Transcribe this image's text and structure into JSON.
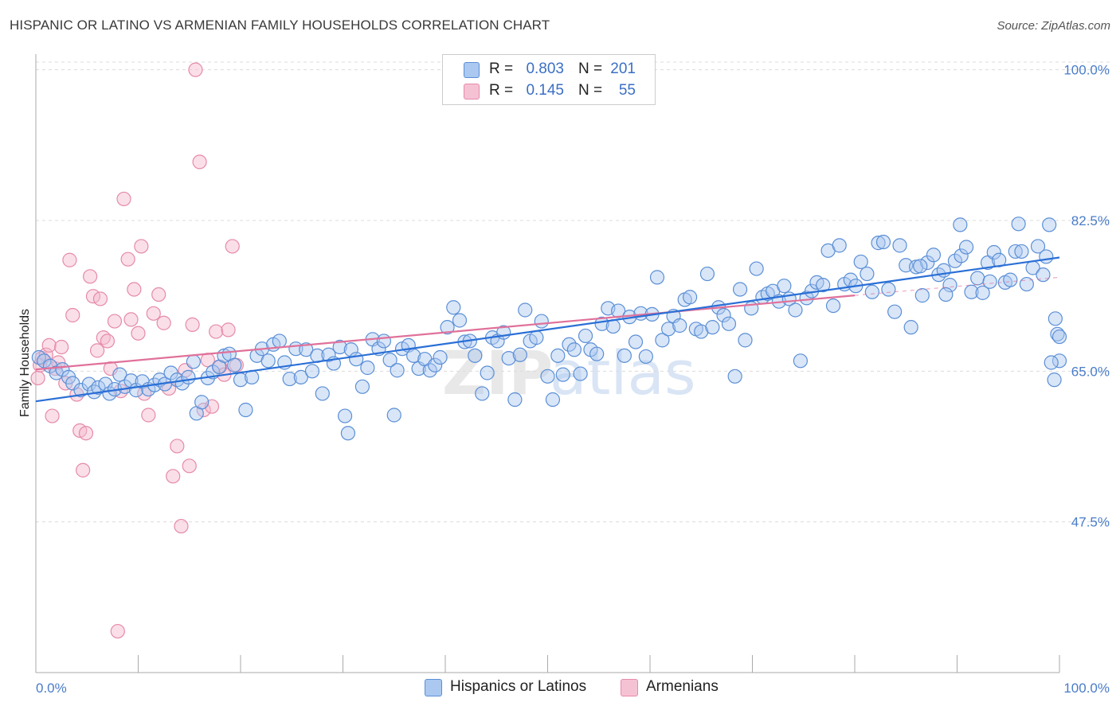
{
  "header": {
    "title": "HISPANIC OR LATINO VS ARMENIAN FAMILY HOUSEHOLDS CORRELATION CHART",
    "source": "Source: ZipAtlas.com"
  },
  "legend_top": {
    "rows": [
      {
        "r_label": "R =",
        "r_value": "0.803",
        "n_label": "N =",
        "n_value": "201"
      },
      {
        "r_label": "R =",
        "r_value": "0.145",
        "n_label": "N =",
        "n_value": "55"
      }
    ]
  },
  "legend_bottom": {
    "items": [
      {
        "label": "Hispanics or Latinos"
      },
      {
        "label": "Armenians"
      }
    ]
  },
  "watermark": {
    "part1": "ZIP",
    "part2": "atlas"
  },
  "colors": {
    "blue_fill": "#aac8f0",
    "blue_stroke": "#5b8fd6",
    "blue_line": "#2a6fd6",
    "pink_fill": "#f5b8cc",
    "pink_stroke": "#e68aa8",
    "pink_line": "#e0719a",
    "tick_text": "#4a7cc9",
    "grid": "#dcdcdc"
  },
  "chart_data": {
    "type": "scatter",
    "title": "HISPANIC OR LATINO VS ARMENIAN FAMILY HOUSEHOLDS CORRELATION CHART",
    "xlabel": "",
    "ylabel": "Family Households",
    "xlim": [
      0,
      100
    ],
    "ylim": [
      30,
      102
    ],
    "x_tick_labels": [
      "0.0%",
      "100.0%"
    ],
    "y_ticks": [
      47.5,
      65.0,
      82.5,
      100.0
    ],
    "y_tick_labels": [
      "47.5%",
      "65.0%",
      "82.5%",
      "100.0%"
    ],
    "grid": "horizontal dashed",
    "legend_position": "top-center",
    "series": [
      {
        "name": "Hispanics or Latinos",
        "color": "#5b8fd6",
        "trend": {
          "x0": 0,
          "y0": 61.5,
          "x1": 100,
          "y1": 78.2
        },
        "points": [
          [
            0.3,
            66.6
          ],
          [
            0.8,
            66.2
          ],
          [
            1.4,
            65.6
          ],
          [
            2.0,
            64.8
          ],
          [
            2.6,
            65.2
          ],
          [
            3.2,
            64.3
          ],
          [
            3.6,
            63.6
          ],
          [
            4.4,
            62.8
          ],
          [
            5.2,
            63.5
          ],
          [
            5.7,
            62.6
          ],
          [
            6.1,
            63.1
          ],
          [
            6.8,
            63.5
          ],
          [
            7.2,
            62.4
          ],
          [
            7.7,
            62.9
          ],
          [
            8.2,
            64.6
          ],
          [
            8.7,
            63.2
          ],
          [
            9.3,
            63.9
          ],
          [
            9.8,
            62.8
          ],
          [
            10.4,
            63.8
          ],
          [
            11.0,
            62.9
          ],
          [
            11.6,
            63.4
          ],
          [
            12.1,
            64.0
          ],
          [
            12.6,
            63.5
          ],
          [
            13.2,
            64.8
          ],
          [
            13.8,
            64.0
          ],
          [
            14.3,
            63.6
          ],
          [
            14.9,
            64.3
          ],
          [
            15.4,
            66.1
          ],
          [
            15.7,
            60.1
          ],
          [
            16.2,
            61.4
          ],
          [
            16.8,
            64.2
          ],
          [
            17.3,
            64.9
          ],
          [
            17.9,
            65.5
          ],
          [
            18.4,
            66.8
          ],
          [
            18.9,
            67.0
          ],
          [
            19.4,
            65.7
          ],
          [
            20.0,
            64.0
          ],
          [
            20.5,
            60.5
          ],
          [
            21.1,
            64.3
          ],
          [
            21.6,
            66.8
          ],
          [
            22.1,
            67.6
          ],
          [
            22.7,
            66.2
          ],
          [
            23.2,
            68.1
          ],
          [
            23.8,
            68.5
          ],
          [
            24.3,
            66.0
          ],
          [
            24.8,
            64.1
          ],
          [
            25.4,
            67.6
          ],
          [
            25.9,
            64.3
          ],
          [
            26.4,
            67.5
          ],
          [
            27.0,
            65.0
          ],
          [
            27.5,
            66.8
          ],
          [
            28.0,
            62.4
          ],
          [
            28.6,
            66.9
          ],
          [
            29.1,
            65.9
          ],
          [
            29.7,
            67.8
          ],
          [
            30.2,
            59.8
          ],
          [
            30.5,
            57.8
          ],
          [
            30.8,
            67.5
          ],
          [
            31.3,
            66.4
          ],
          [
            31.9,
            63.2
          ],
          [
            32.4,
            65.4
          ],
          [
            32.9,
            68.7
          ],
          [
            33.5,
            67.6
          ],
          [
            34.0,
            68.5
          ],
          [
            34.6,
            66.3
          ],
          [
            35.0,
            59.9
          ],
          [
            35.3,
            65.1
          ],
          [
            35.8,
            67.6
          ],
          [
            36.4,
            68.0
          ],
          [
            36.9,
            66.8
          ],
          [
            37.4,
            65.3
          ],
          [
            38.0,
            66.4
          ],
          [
            38.5,
            65.1
          ],
          [
            39.0,
            65.7
          ],
          [
            39.5,
            66.6
          ],
          [
            40.2,
            70.1
          ],
          [
            40.8,
            72.4
          ],
          [
            41.4,
            70.9
          ],
          [
            41.9,
            68.4
          ],
          [
            42.4,
            68.5
          ],
          [
            42.9,
            66.8
          ],
          [
            43.6,
            62.4
          ],
          [
            44.1,
            64.8
          ],
          [
            44.6,
            68.9
          ],
          [
            45.1,
            68.5
          ],
          [
            45.7,
            69.5
          ],
          [
            46.2,
            66.5
          ],
          [
            46.8,
            61.7
          ],
          [
            47.3,
            66.9
          ],
          [
            47.8,
            72.1
          ],
          [
            48.3,
            68.5
          ],
          [
            48.9,
            68.9
          ],
          [
            49.4,
            70.8
          ],
          [
            50.0,
            64.4
          ],
          [
            50.5,
            61.7
          ],
          [
            51.0,
            66.8
          ],
          [
            51.5,
            64.6
          ],
          [
            52.1,
            68.1
          ],
          [
            52.6,
            67.5
          ],
          [
            53.2,
            64.7
          ],
          [
            53.7,
            69.1
          ],
          [
            54.2,
            67.5
          ],
          [
            54.8,
            67.0
          ],
          [
            55.3,
            70.5
          ],
          [
            55.9,
            72.3
          ],
          [
            56.4,
            70.2
          ],
          [
            56.9,
            72.0
          ],
          [
            57.5,
            66.8
          ],
          [
            58.0,
            71.3
          ],
          [
            58.6,
            68.4
          ],
          [
            59.1,
            71.7
          ],
          [
            59.6,
            66.7
          ],
          [
            60.2,
            71.6
          ],
          [
            60.7,
            75.9
          ],
          [
            61.2,
            68.6
          ],
          [
            61.8,
            69.9
          ],
          [
            62.3,
            71.4
          ],
          [
            62.9,
            70.3
          ],
          [
            63.4,
            73.3
          ],
          [
            63.9,
            73.6
          ],
          [
            64.5,
            69.9
          ],
          [
            65.0,
            69.6
          ],
          [
            65.6,
            76.3
          ],
          [
            66.1,
            70.1
          ],
          [
            66.7,
            72.4
          ],
          [
            67.2,
            71.5
          ],
          [
            67.7,
            70.5
          ],
          [
            68.3,
            64.4
          ],
          [
            68.8,
            74.5
          ],
          [
            69.3,
            68.6
          ],
          [
            69.9,
            72.3
          ],
          [
            70.4,
            76.9
          ],
          [
            71.0,
            73.6
          ],
          [
            71.5,
            74.0
          ],
          [
            72.0,
            74.3
          ],
          [
            72.6,
            73.1
          ],
          [
            73.1,
            74.9
          ],
          [
            73.6,
            73.4
          ],
          [
            74.2,
            72.1
          ],
          [
            74.7,
            66.2
          ],
          [
            75.3,
            73.5
          ],
          [
            75.8,
            74.3
          ],
          [
            76.3,
            75.3
          ],
          [
            76.9,
            75.0
          ],
          [
            77.4,
            79.0
          ],
          [
            77.9,
            72.6
          ],
          [
            78.5,
            79.6
          ],
          [
            79.0,
            75.1
          ],
          [
            79.6,
            75.6
          ],
          [
            80.1,
            74.9
          ],
          [
            80.6,
            77.7
          ],
          [
            81.2,
            76.3
          ],
          [
            81.7,
            74.2
          ],
          [
            82.3,
            79.9
          ],
          [
            82.8,
            80.0
          ],
          [
            83.3,
            74.5
          ],
          [
            83.9,
            71.9
          ],
          [
            84.4,
            79.6
          ],
          [
            85.0,
            77.3
          ],
          [
            85.5,
            70.1
          ],
          [
            86.0,
            77.1
          ],
          [
            86.6,
            73.8
          ],
          [
            87.1,
            77.6
          ],
          [
            87.7,
            78.5
          ],
          [
            88.2,
            76.2
          ],
          [
            88.7,
            76.7
          ],
          [
            89.3,
            75.0
          ],
          [
            89.8,
            77.8
          ],
          [
            90.4,
            78.4
          ],
          [
            90.9,
            79.4
          ],
          [
            91.4,
            74.2
          ],
          [
            92.0,
            75.8
          ],
          [
            92.5,
            74.1
          ],
          [
            93.0,
            77.6
          ],
          [
            93.6,
            78.8
          ],
          [
            94.1,
            77.9
          ],
          [
            94.7,
            75.3
          ],
          [
            95.2,
            75.6
          ],
          [
            95.7,
            78.9
          ],
          [
            96.3,
            78.9
          ],
          [
            96.8,
            75.1
          ],
          [
            97.4,
            77.0
          ],
          [
            97.9,
            79.5
          ],
          [
            98.4,
            76.2
          ],
          [
            99.0,
            82.0
          ],
          [
            99.5,
            64.0
          ],
          [
            99.8,
            69.3
          ],
          [
            100.0,
            66.2
          ],
          [
            96.0,
            82.1
          ],
          [
            90.3,
            82.0
          ],
          [
            98.7,
            78.3
          ],
          [
            99.2,
            66.0
          ],
          [
            99.6,
            71.1
          ],
          [
            100.0,
            69.0
          ],
          [
            86.4,
            77.2
          ],
          [
            88.9,
            73.9
          ],
          [
            93.2,
            75.4
          ]
        ]
      },
      {
        "name": "Armenians",
        "color": "#e68aa8",
        "trend": {
          "x0": 0,
          "y0": 65.2,
          "x1": 80,
          "y1": 73.8
        },
        "trend_dash_to": {
          "x": 100,
          "y": 75.9
        },
        "points": [
          [
            0.2,
            64.2
          ],
          [
            0.4,
            65.7
          ],
          [
            0.6,
            66.5
          ],
          [
            1.0,
            66.9
          ],
          [
            1.3,
            68.0
          ],
          [
            1.6,
            59.8
          ],
          [
            1.9,
            65.3
          ],
          [
            2.2,
            66.0
          ],
          [
            2.5,
            67.8
          ],
          [
            2.9,
            63.6
          ],
          [
            3.3,
            77.9
          ],
          [
            3.6,
            71.5
          ],
          [
            4.0,
            62.3
          ],
          [
            4.3,
            58.1
          ],
          [
            4.6,
            53.5
          ],
          [
            4.9,
            57.8
          ],
          [
            5.3,
            76.0
          ],
          [
            5.6,
            73.7
          ],
          [
            6.0,
            67.4
          ],
          [
            6.3,
            73.4
          ],
          [
            6.6,
            68.9
          ],
          [
            7.0,
            68.5
          ],
          [
            7.3,
            65.3
          ],
          [
            7.7,
            70.8
          ],
          [
            8.0,
            34.8
          ],
          [
            8.3,
            62.7
          ],
          [
            8.6,
            85.0
          ],
          [
            9.0,
            78.0
          ],
          [
            9.3,
            71.0
          ],
          [
            9.6,
            74.5
          ],
          [
            10.0,
            69.4
          ],
          [
            10.3,
            79.5
          ],
          [
            10.6,
            62.4
          ],
          [
            11.0,
            59.9
          ],
          [
            11.5,
            71.7
          ],
          [
            12.0,
            73.9
          ],
          [
            12.5,
            70.6
          ],
          [
            13.0,
            63.0
          ],
          [
            13.4,
            52.8
          ],
          [
            13.8,
            56.3
          ],
          [
            14.2,
            47.0
          ],
          [
            14.6,
            65.1
          ],
          [
            15.0,
            54.0
          ],
          [
            15.3,
            70.4
          ],
          [
            15.6,
            100.0
          ],
          [
            16.0,
            89.3
          ],
          [
            16.4,
            60.5
          ],
          [
            16.8,
            66.3
          ],
          [
            17.2,
            60.9
          ],
          [
            17.6,
            69.6
          ],
          [
            18.0,
            65.5
          ],
          [
            18.4,
            64.6
          ],
          [
            18.8,
            69.8
          ],
          [
            19.2,
            79.5
          ],
          [
            19.6,
            65.7
          ]
        ]
      }
    ]
  }
}
